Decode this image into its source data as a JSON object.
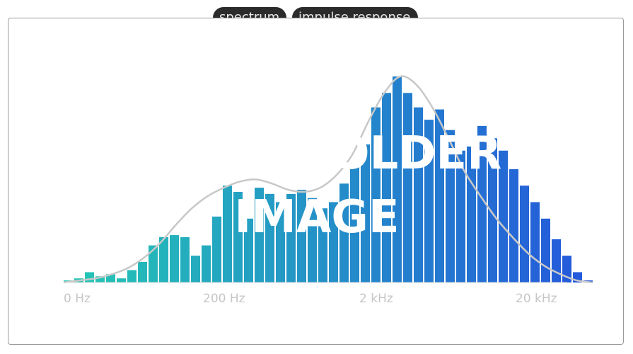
{
  "tabs": [
    {
      "label": "spectrum"
    },
    {
      "label": "impulse response"
    }
  ],
  "placeholder": {
    "line1": "PLACEHOLDER",
    "line2": "IMAGE"
  },
  "colors": {
    "bar_start": "#24c8b4",
    "bar_end": "#2456dc",
    "curve": "#c8c8c8",
    "axis_text": "#c6c6c6",
    "frame": "#9a9a9a",
    "tab_bg": "#2b2b2b"
  },
  "chart_data": {
    "type": "bar",
    "title": "",
    "xlabel": "",
    "ylabel": "",
    "x_scale": "log",
    "x_ticks": [
      "0 Hz",
      "200 Hz",
      "2 kHz",
      "20 kHz"
    ],
    "ylim": [
      0,
      100
    ],
    "grid": false,
    "values": [
      1,
      2,
      5,
      3,
      4,
      2,
      6,
      10,
      18,
      22,
      23,
      22,
      13,
      18,
      32,
      47,
      44,
      31,
      46,
      43,
      39,
      43,
      45,
      41,
      36,
      39,
      48,
      58,
      67,
      85,
      92,
      100,
      92,
      85,
      79,
      84,
      74,
      64,
      66,
      76,
      70,
      64,
      55,
      47,
      39,
      31,
      21,
      13,
      5,
      1
    ],
    "series": [
      {
        "type": "line",
        "values": [
          0,
          1,
          2,
          4,
          7,
          12,
          19,
          28,
          36,
          42,
          46,
          49,
          50,
          48,
          45,
          44,
          46,
          52,
          62,
          78,
          92,
          100,
          96,
          85,
          70,
          54,
          42,
          31,
          22,
          14,
          8,
          4,
          1,
          0
        ]
      }
    ]
  }
}
